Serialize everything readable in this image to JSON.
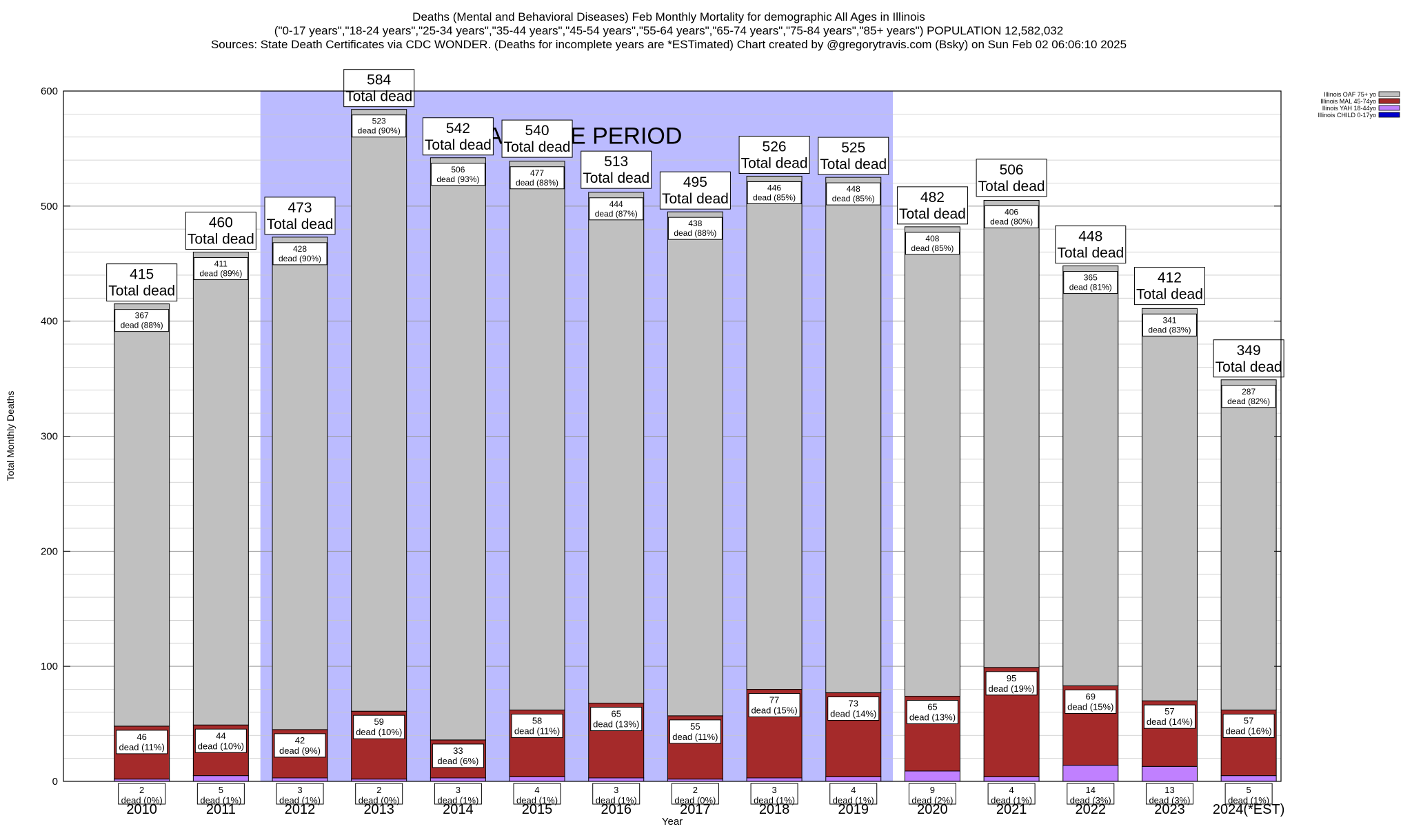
{
  "header": {
    "title_line1": "Deaths (Mental and Behavioral Diseases) Feb Monthly Mortality for demographic All Ages in Illinois",
    "title_line2": "(\"0-17 years\",\"18-24 years\",\"25-34 years\",\"35-44 years\",\"45-54 years\",\"55-64 years\",\"65-74 years\",\"75-84 years\",\"85+ years\") POPULATION 12,582,032",
    "title_line3": "Sources: State Death Certificates via CDC WONDER. (Deaths for incomplete years are *ESTimated)                Chart created by @gregorytravis.com (Bsky) on Sun Feb 02 06:06:10 2025"
  },
  "chart_data": {
    "type": "bar",
    "stacked": true,
    "xlabel": "Year",
    "ylabel": "Total Monthly Deaths",
    "ylim": [
      0,
      600
    ],
    "yticks": [
      0,
      100,
      200,
      300,
      400,
      500,
      600
    ],
    "grid": true,
    "legend_position": "top-right",
    "baseline_label": "BASELINE PERIOD",
    "baseline_range": [
      "2012",
      "2019"
    ],
    "total_suffix": "Total dead",
    "dead_word": "dead",
    "categories": [
      "2010",
      "2011",
      "2012",
      "2013",
      "2014",
      "2015",
      "2016",
      "2017",
      "2018",
      "2019",
      "2020",
      "2021",
      "2022",
      "2023",
      "2024(*EST)"
    ],
    "totals": [
      415,
      460,
      473,
      584,
      542,
      540,
      513,
      495,
      526,
      525,
      482,
      506,
      448,
      412,
      349
    ],
    "series": [
      {
        "name": "Illinois CHILD 0-17yo",
        "color": "#0000cc",
        "values": [
          0,
          0,
          0,
          0,
          0,
          0,
          0,
          0,
          0,
          0,
          0,
          0,
          0,
          0,
          0
        ],
        "pct_labels": []
      },
      {
        "name": "Ilinois YAH 18-44yo",
        "color": "#c080ff",
        "values": [
          2,
          5,
          3,
          2,
          3,
          4,
          3,
          2,
          3,
          4,
          9,
          4,
          14,
          13,
          5
        ],
        "pct_labels": [
          "0%",
          "1%",
          "1%",
          "0%",
          "1%",
          "1%",
          "1%",
          "0%",
          "1%",
          "1%",
          "2%",
          "1%",
          "3%",
          "3%",
          "1%"
        ]
      },
      {
        "name": "Illinois MAL 45-74yo",
        "color": "#a52a2a",
        "values": [
          46,
          44,
          42,
          59,
          33,
          58,
          65,
          55,
          77,
          73,
          65,
          95,
          69,
          57,
          57
        ],
        "pct_labels": [
          "11%",
          "10%",
          "9%",
          "10%",
          "6%",
          "11%",
          "13%",
          "11%",
          "15%",
          "14%",
          "13%",
          "19%",
          "15%",
          "14%",
          "16%"
        ]
      },
      {
        "name": "Illinois OAF 75+ yo",
        "color": "#c0c0c0",
        "values": [
          367,
          411,
          428,
          523,
          506,
          477,
          444,
          438,
          446,
          448,
          408,
          406,
          365,
          341,
          287
        ],
        "pct_labels": [
          "88%",
          "89%",
          "90%",
          "90%",
          "93%",
          "88%",
          "87%",
          "88%",
          "85%",
          "85%",
          "85%",
          "80%",
          "81%",
          "83%",
          "82%"
        ]
      }
    ]
  }
}
